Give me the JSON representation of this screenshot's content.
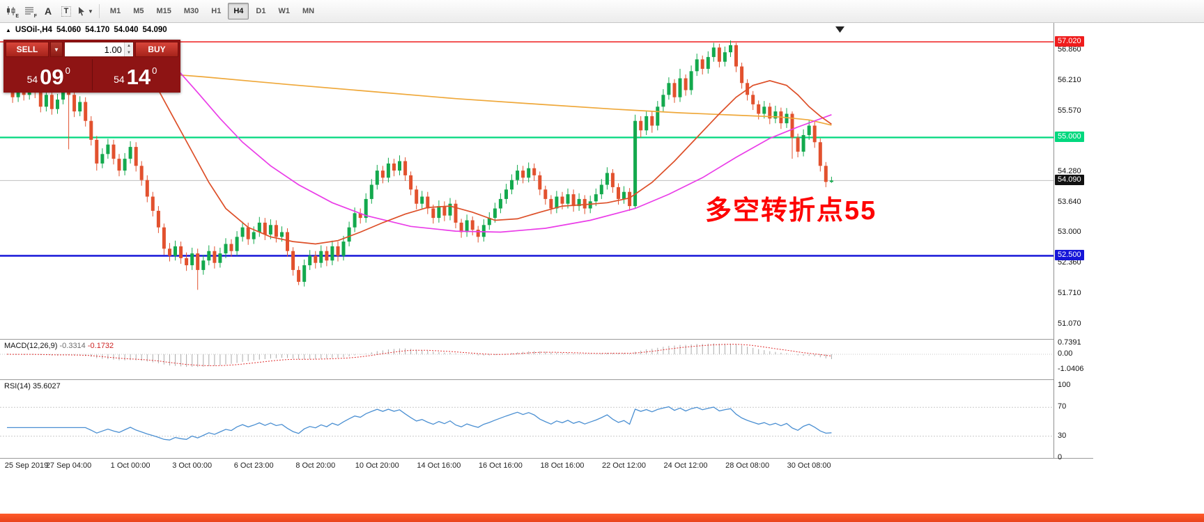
{
  "toolbar": {
    "tools": {
      "icon1_sub": "E",
      "icon2_sub": "F",
      "text_tool": "A",
      "label_tool": "T"
    },
    "timeframes": [
      {
        "label": "M1",
        "active": false
      },
      {
        "label": "M5",
        "active": false
      },
      {
        "label": "M15",
        "active": false
      },
      {
        "label": "M30",
        "active": false
      },
      {
        "label": "H1",
        "active": false
      },
      {
        "label": "H4",
        "active": true
      },
      {
        "label": "D1",
        "active": false
      },
      {
        "label": "W1",
        "active": false
      },
      {
        "label": "MN",
        "active": false
      }
    ]
  },
  "chart": {
    "symbol_timeframe": "USOil-,H4",
    "open": "54.060",
    "high": "54.170",
    "low": "54.040",
    "close": "54.090"
  },
  "trade_panel": {
    "sell_label": "SELL",
    "buy_label": "BUY",
    "volume": "1.00",
    "sell_price": {
      "figure": "54",
      "pips": "09",
      "point": "0"
    },
    "buy_price": {
      "figure": "54",
      "pips": "14",
      "point": "0"
    }
  },
  "annotation": {
    "text": "多空转折点55",
    "color": "#fe0000"
  },
  "indicators": {
    "macd": {
      "label": "MACD(12,26,9)",
      "value_main": "-0.3314",
      "value_signal": "-0.1732"
    },
    "rsi": {
      "label": "RSI(14)",
      "value": "35.6027"
    }
  },
  "chart_data": {
    "type": "candlestick",
    "symbol": "USOil-",
    "timeframe": "H4",
    "ylim": [
      50.74,
      57.42
    ],
    "style": {
      "up": "#13a94d",
      "down": "#e2512e",
      "bid_line": "#c0c0c0",
      "macd_hist": "#ababab",
      "macd_signal": "#e03030",
      "rsi_line": "#4a8fd2"
    },
    "y_ticks": [
      "56.860",
      "56.210",
      "55.570",
      "54.280",
      "53.640",
      "53.000",
      "52.360",
      "51.710",
      "51.070"
    ],
    "hlines": [
      {
        "value": 57.02,
        "color": "#ef1c1c",
        "width": 1.5,
        "label": "57.020"
      },
      {
        "value": 55.0,
        "color": "#00d87e",
        "width": 2.2,
        "label": "55.000"
      },
      {
        "value": 52.5,
        "color": "#1515d8",
        "width": 2.4,
        "label": "52.500"
      }
    ],
    "price_label": {
      "value": 54.09,
      "label": "54.090",
      "bg": "#111111"
    },
    "macd_axis_labels": [
      "0.7391",
      "0.00",
      "-1.0406"
    ],
    "rsi_axis_labels": [
      "100",
      "70",
      "30",
      "0"
    ],
    "rsi_levels": [
      70,
      30
    ],
    "x_ticks": [
      [
        0,
        "25 Sep 2019"
      ],
      [
        11,
        "27 Sep 04:00"
      ],
      [
        22,
        "1 Oct 00:00"
      ],
      [
        33,
        "3 Oct 00:00"
      ],
      [
        44,
        "6 Oct 23:00"
      ],
      [
        55,
        "8 Oct 20:00"
      ],
      [
        66,
        "10 Oct 20:00"
      ],
      [
        77,
        "14 Oct 16:00"
      ],
      [
        88,
        "16 Oct 16:00"
      ],
      [
        99,
        "18 Oct 16:00"
      ],
      [
        110,
        "22 Oct 12:00"
      ],
      [
        121,
        "24 Oct 12:00"
      ],
      [
        132,
        "28 Oct 08:00"
      ],
      [
        143,
        "30 Oct 08:00"
      ]
    ],
    "overlays": [
      {
        "name": "ma-slow",
        "color": "#efa83a",
        "points": [
          [
            20,
            56.42
          ],
          [
            35,
            56.28
          ],
          [
            50,
            56.12
          ],
          [
            65,
            55.97
          ],
          [
            80,
            55.82
          ],
          [
            95,
            55.7
          ],
          [
            108,
            55.6
          ],
          [
            120,
            55.52
          ],
          [
            130,
            55.47
          ],
          [
            138,
            55.43
          ],
          [
            143,
            55.37
          ],
          [
            147,
            55.26
          ]
        ]
      },
      {
        "name": "ma-medium",
        "color": "#ea3de8",
        "points": [
          [
            28,
            56.75
          ],
          [
            31,
            56.35
          ],
          [
            34,
            55.95
          ],
          [
            38,
            55.4
          ],
          [
            42,
            54.9
          ],
          [
            47,
            54.4
          ],
          [
            52,
            54.0
          ],
          [
            58,
            53.62
          ],
          [
            64,
            53.35
          ],
          [
            72,
            53.12
          ],
          [
            80,
            53.02
          ],
          [
            88,
            53.0
          ],
          [
            96,
            53.08
          ],
          [
            104,
            53.25
          ],
          [
            112,
            53.5
          ],
          [
            118,
            53.8
          ],
          [
            124,
            54.15
          ],
          [
            130,
            54.58
          ],
          [
            136,
            54.98
          ],
          [
            141,
            55.22
          ],
          [
            147,
            55.48
          ]
        ]
      },
      {
        "name": "ma-fast",
        "color": "#dd4f28",
        "points": [
          [
            24,
            56.55
          ],
          [
            27,
            56.0
          ],
          [
            30,
            55.35
          ],
          [
            33,
            54.7
          ],
          [
            36,
            54.05
          ],
          [
            39,
            53.5
          ],
          [
            43,
            53.1
          ],
          [
            47,
            52.9
          ],
          [
            51,
            52.8
          ],
          [
            55,
            52.75
          ],
          [
            59,
            52.82
          ],
          [
            63,
            53.0
          ],
          [
            67,
            53.2
          ],
          [
            71,
            53.38
          ],
          [
            75,
            53.52
          ],
          [
            79,
            53.55
          ],
          [
            83,
            53.42
          ],
          [
            87,
            53.25
          ],
          [
            91,
            53.28
          ],
          [
            95,
            53.42
          ],
          [
            99,
            53.55
          ],
          [
            103,
            53.58
          ],
          [
            107,
            53.62
          ],
          [
            111,
            53.72
          ],
          [
            115,
            54.05
          ],
          [
            119,
            54.5
          ],
          [
            123,
            55.0
          ],
          [
            127,
            55.5
          ],
          [
            130,
            55.85
          ],
          [
            133,
            56.1
          ],
          [
            136,
            56.2
          ],
          [
            139,
            56.1
          ],
          [
            141,
            55.9
          ],
          [
            143,
            55.65
          ],
          [
            145,
            55.45
          ],
          [
            147,
            55.28
          ]
        ]
      }
    ],
    "candles": [
      [
        56.3,
        56.42,
        55.98,
        56.1
      ],
      [
        56.1,
        56.22,
        55.73,
        55.85
      ],
      [
        55.85,
        56.32,
        55.75,
        56.2
      ],
      [
        56.2,
        56.3,
        55.78,
        55.9
      ],
      [
        55.9,
        56.44,
        55.8,
        56.3
      ],
      [
        56.3,
        56.4,
        55.83,
        55.95
      ],
      [
        55.95,
        56.05,
        55.53,
        55.65
      ],
      [
        55.65,
        56.02,
        55.55,
        55.9
      ],
      [
        55.9,
        56.0,
        55.48,
        55.6
      ],
      [
        55.6,
        55.92,
        55.5,
        55.8
      ],
      [
        55.8,
        56.47,
        55.7,
        56.35
      ],
      [
        56.35,
        56.45,
        54.75,
        55.9
      ],
      [
        55.9,
        56.0,
        55.43,
        55.55
      ],
      [
        55.55,
        55.87,
        55.45,
        55.75
      ],
      [
        55.75,
        55.85,
        55.23,
        55.35
      ],
      [
        55.35,
        55.45,
        54.83,
        54.95
      ],
      [
        54.95,
        55.03,
        54.3,
        54.45
      ],
      [
        54.45,
        54.77,
        54.35,
        54.65
      ],
      [
        54.65,
        54.97,
        54.55,
        54.85
      ],
      [
        54.85,
        54.95,
        54.43,
        54.55
      ],
      [
        54.55,
        54.65,
        54.18,
        54.3
      ],
      [
        54.3,
        54.67,
        54.2,
        54.55
      ],
      [
        54.55,
        54.92,
        54.45,
        54.8
      ],
      [
        54.8,
        54.9,
        54.28,
        54.4
      ],
      [
        54.4,
        54.5,
        53.98,
        54.1
      ],
      [
        54.1,
        54.2,
        53.63,
        53.75
      ],
      [
        53.75,
        53.85,
        53.33,
        53.45
      ],
      [
        53.45,
        53.55,
        52.98,
        53.1
      ],
      [
        53.1,
        53.18,
        52.52,
        52.65
      ],
      [
        52.65,
        52.77,
        52.38,
        52.5
      ],
      [
        52.5,
        52.82,
        52.4,
        52.7
      ],
      [
        52.7,
        52.8,
        52.33,
        52.45
      ],
      [
        52.45,
        52.57,
        52.18,
        52.3
      ],
      [
        52.3,
        52.67,
        52.2,
        52.55
      ],
      [
        52.55,
        52.65,
        51.78,
        52.2
      ],
      [
        52.2,
        52.52,
        52.1,
        52.4
      ],
      [
        52.4,
        52.72,
        52.3,
        52.6
      ],
      [
        52.6,
        52.7,
        52.23,
        52.35
      ],
      [
        52.35,
        52.67,
        52.25,
        52.55
      ],
      [
        52.55,
        52.87,
        52.45,
        52.75
      ],
      [
        52.75,
        52.85,
        52.48,
        52.6
      ],
      [
        52.6,
        53.02,
        52.5,
        52.9
      ],
      [
        52.9,
        53.22,
        52.8,
        53.1
      ],
      [
        53.1,
        53.2,
        52.73,
        52.85
      ],
      [
        52.85,
        53.12,
        52.75,
        53.0
      ],
      [
        53.0,
        53.32,
        52.9,
        53.2
      ],
      [
        53.2,
        53.3,
        52.83,
        52.95
      ],
      [
        52.95,
        53.27,
        52.85,
        53.15
      ],
      [
        53.15,
        53.25,
        52.78,
        52.9
      ],
      [
        52.9,
        53.12,
        52.8,
        53.0
      ],
      [
        53.0,
        53.08,
        52.48,
        52.6
      ],
      [
        52.6,
        52.68,
        52.08,
        52.2
      ],
      [
        52.2,
        52.28,
        51.88,
        51.95
      ],
      [
        51.95,
        52.42,
        51.85,
        52.3
      ],
      [
        52.3,
        52.62,
        52.2,
        52.5
      ],
      [
        52.5,
        52.6,
        52.23,
        52.35
      ],
      [
        52.35,
        52.72,
        52.25,
        52.6
      ],
      [
        52.6,
        52.7,
        52.28,
        52.4
      ],
      [
        52.4,
        52.82,
        52.3,
        52.7
      ],
      [
        52.7,
        52.8,
        52.38,
        52.5
      ],
      [
        52.5,
        52.92,
        52.4,
        52.8
      ],
      [
        52.8,
        53.22,
        52.7,
        53.1
      ],
      [
        53.1,
        53.52,
        53.0,
        53.4
      ],
      [
        53.4,
        53.5,
        53.18,
        53.3
      ],
      [
        53.3,
        53.82,
        53.2,
        53.7
      ],
      [
        53.7,
        54.12,
        53.6,
        54.0
      ],
      [
        54.0,
        54.42,
        53.9,
        54.3
      ],
      [
        54.3,
        54.4,
        54.03,
        54.15
      ],
      [
        54.15,
        54.57,
        54.05,
        54.45
      ],
      [
        54.45,
        54.55,
        54.18,
        54.3
      ],
      [
        54.3,
        54.62,
        54.2,
        54.5
      ],
      [
        54.5,
        54.58,
        54.08,
        54.2
      ],
      [
        54.2,
        54.28,
        53.78,
        53.9
      ],
      [
        53.9,
        53.98,
        53.48,
        53.6
      ],
      [
        53.6,
        53.87,
        53.5,
        53.75
      ],
      [
        53.75,
        53.85,
        53.38,
        53.5
      ],
      [
        53.5,
        53.58,
        53.18,
        53.3
      ],
      [
        53.3,
        53.67,
        53.2,
        53.55
      ],
      [
        53.55,
        53.65,
        53.23,
        53.35
      ],
      [
        53.35,
        53.72,
        53.25,
        53.6
      ],
      [
        53.6,
        53.68,
        53.08,
        53.2
      ],
      [
        53.2,
        53.28,
        52.88,
        53.0
      ],
      [
        53.0,
        53.37,
        52.9,
        53.25
      ],
      [
        53.25,
        53.33,
        52.93,
        53.05
      ],
      [
        53.05,
        53.13,
        52.78,
        52.9
      ],
      [
        52.9,
        53.27,
        52.8,
        53.15
      ],
      [
        53.15,
        53.42,
        53.05,
        53.3
      ],
      [
        53.3,
        53.62,
        53.2,
        53.5
      ],
      [
        53.5,
        53.82,
        53.4,
        53.7
      ],
      [
        53.7,
        54.02,
        53.6,
        53.9
      ],
      [
        53.9,
        54.22,
        53.8,
        54.1
      ],
      [
        54.1,
        54.42,
        54.0,
        54.3
      ],
      [
        54.3,
        54.4,
        54.03,
        54.15
      ],
      [
        54.15,
        54.47,
        54.05,
        54.35
      ],
      [
        54.35,
        54.45,
        54.08,
        54.2
      ],
      [
        54.2,
        54.28,
        53.78,
        53.9
      ],
      [
        53.9,
        53.98,
        53.58,
        53.7
      ],
      [
        53.7,
        53.78,
        53.38,
        53.5
      ],
      [
        53.5,
        53.87,
        53.4,
        53.75
      ],
      [
        53.75,
        53.85,
        53.48,
        53.6
      ],
      [
        53.6,
        53.92,
        53.5,
        53.8
      ],
      [
        53.8,
        53.9,
        53.43,
        53.55
      ],
      [
        53.55,
        53.82,
        53.45,
        53.7
      ],
      [
        53.7,
        53.78,
        53.38,
        53.5
      ],
      [
        53.5,
        53.77,
        53.4,
        53.65
      ],
      [
        53.65,
        53.92,
        53.55,
        53.8
      ],
      [
        53.8,
        54.12,
        53.7,
        54.0
      ],
      [
        54.0,
        54.37,
        53.9,
        54.25
      ],
      [
        54.25,
        54.33,
        53.83,
        53.95
      ],
      [
        53.95,
        54.03,
        53.58,
        53.7
      ],
      [
        53.7,
        53.97,
        53.6,
        53.85
      ],
      [
        53.85,
        53.93,
        53.45,
        53.55
      ],
      [
        53.55,
        55.48,
        53.5,
        55.35
      ],
      [
        55.35,
        55.45,
        55.0,
        55.15
      ],
      [
        55.15,
        55.57,
        55.05,
        55.45
      ],
      [
        55.45,
        55.55,
        55.1,
        55.25
      ],
      [
        55.25,
        55.77,
        55.15,
        55.65
      ],
      [
        55.65,
        56.02,
        55.55,
        55.9
      ],
      [
        55.9,
        56.27,
        55.8,
        56.15
      ],
      [
        56.15,
        56.23,
        55.73,
        55.85
      ],
      [
        55.85,
        56.45,
        55.75,
        56.25
      ],
      [
        56.25,
        56.33,
        55.88,
        56.0
      ],
      [
        56.0,
        56.52,
        55.9,
        56.4
      ],
      [
        56.4,
        56.77,
        56.3,
        56.65
      ],
      [
        56.65,
        56.73,
        56.33,
        56.45
      ],
      [
        56.45,
        56.82,
        56.35,
        56.7
      ],
      [
        56.7,
        57.0,
        56.6,
        56.9
      ],
      [
        56.9,
        56.98,
        56.48,
        56.6
      ],
      [
        56.6,
        56.92,
        56.5,
        56.8
      ],
      [
        56.8,
        57.05,
        56.7,
        56.95
      ],
      [
        56.95,
        57.0,
        56.38,
        56.5
      ],
      [
        56.5,
        56.58,
        56.03,
        56.15
      ],
      [
        56.15,
        56.23,
        55.78,
        55.9
      ],
      [
        55.9,
        55.98,
        55.58,
        55.7
      ],
      [
        55.7,
        55.78,
        55.38,
        55.5
      ],
      [
        55.5,
        55.77,
        55.4,
        55.65
      ],
      [
        55.65,
        55.73,
        55.28,
        55.4
      ],
      [
        55.4,
        55.67,
        55.3,
        55.55
      ],
      [
        55.55,
        55.63,
        55.18,
        55.3
      ],
      [
        55.3,
        55.62,
        55.2,
        55.5
      ],
      [
        55.5,
        55.55,
        54.55,
        55.0
      ],
      [
        55.0,
        55.08,
        54.58,
        54.7
      ],
      [
        54.7,
        55.17,
        54.6,
        55.05
      ],
      [
        55.05,
        55.37,
        54.95,
        55.25
      ],
      [
        55.25,
        55.33,
        54.78,
        54.9
      ],
      [
        54.9,
        54.98,
        54.28,
        54.4
      ],
      [
        54.4,
        54.48,
        53.95,
        54.06
      ],
      [
        54.06,
        54.17,
        54.04,
        54.09
      ]
    ]
  }
}
